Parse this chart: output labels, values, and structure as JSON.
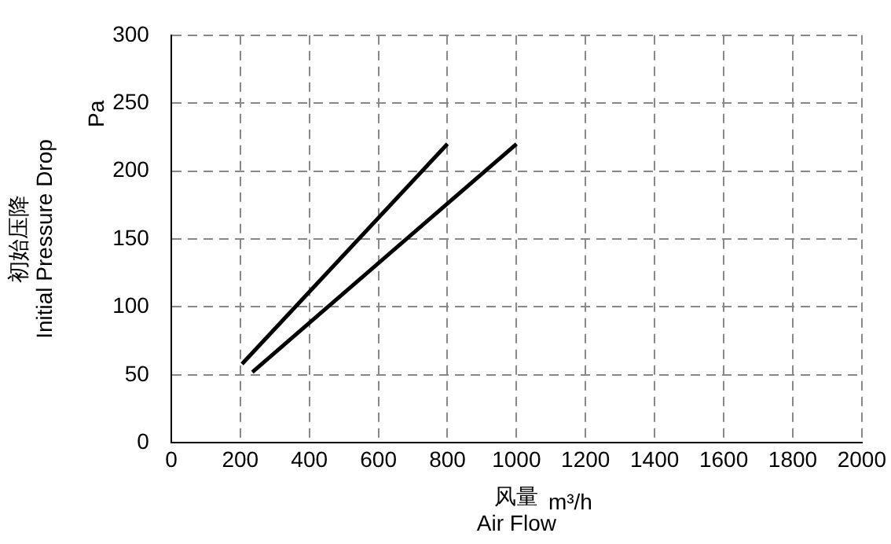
{
  "chart_data": {
    "type": "line",
    "xlabel": "风量\nAir Flow",
    "ylabel": "初始压降\nInitial Pressure Drop",
    "annotations": [
      "Pa",
      "m³/h"
    ],
    "series": [
      {
        "color": "#000000",
        "x": [
          205,
          800
        ],
        "values": [
          58,
          220
        ]
      },
      {
        "color": "#000000",
        "x": [
          235,
          1000
        ],
        "values": [
          52,
          220
        ]
      }
    ],
    "xlim": [
      0,
      2000
    ],
    "xticks": [
      0,
      200,
      400,
      600,
      800,
      1000,
      1200,
      1400,
      1600,
      1800,
      2000
    ],
    "ylim": [
      0,
      300
    ],
    "yticks": [
      0,
      50,
      100,
      150,
      200,
      250,
      300
    ],
    "grid": true,
    "legend": false,
    "marker": "none",
    "line_style": "solid"
  }
}
